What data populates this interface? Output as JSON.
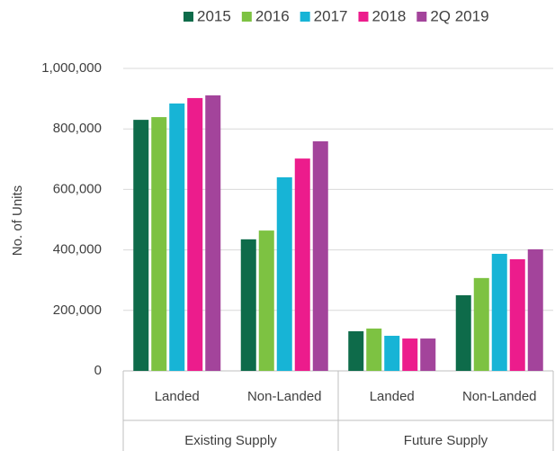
{
  "chart_data": {
    "type": "grouped-bar",
    "y_label": "No. of Units",
    "categories": [
      "Landed",
      "Non-Landed",
      "Landed",
      "Non-Landed"
    ],
    "groups": [
      "Existing Supply",
      "Future Supply"
    ],
    "series": [
      {
        "name": "2015",
        "color": "#0e6b4a",
        "values": [
          830000,
          435000,
          131000,
          250000
        ]
      },
      {
        "name": "2016",
        "color": "#7dc242",
        "values": [
          839000,
          464000,
          140000,
          307000
        ]
      },
      {
        "name": "2017",
        "color": "#17b4d6",
        "values": [
          884000,
          640000,
          116000,
          387000
        ]
      },
      {
        "name": "2018",
        "color": "#ec1c8c",
        "values": [
          902000,
          702000,
          107000,
          369000
        ]
      },
      {
        "name": "2Q 2019",
        "color": "#a3449b",
        "values": [
          911000,
          759000,
          107000,
          402000
        ]
      }
    ],
    "ylim": [
      0,
      1000000
    ],
    "yticks": [
      0,
      {
        "value": 200000,
        "label": "200,000"
      },
      {
        "value": 400000,
        "label": "400,000"
      },
      {
        "value": 600000,
        "label": "600,000"
      },
      {
        "value": 800000,
        "label": "800,000"
      },
      {
        "value": 1000000,
        "label": "1,000,000"
      }
    ],
    "grid": true,
    "legend": "top"
  }
}
